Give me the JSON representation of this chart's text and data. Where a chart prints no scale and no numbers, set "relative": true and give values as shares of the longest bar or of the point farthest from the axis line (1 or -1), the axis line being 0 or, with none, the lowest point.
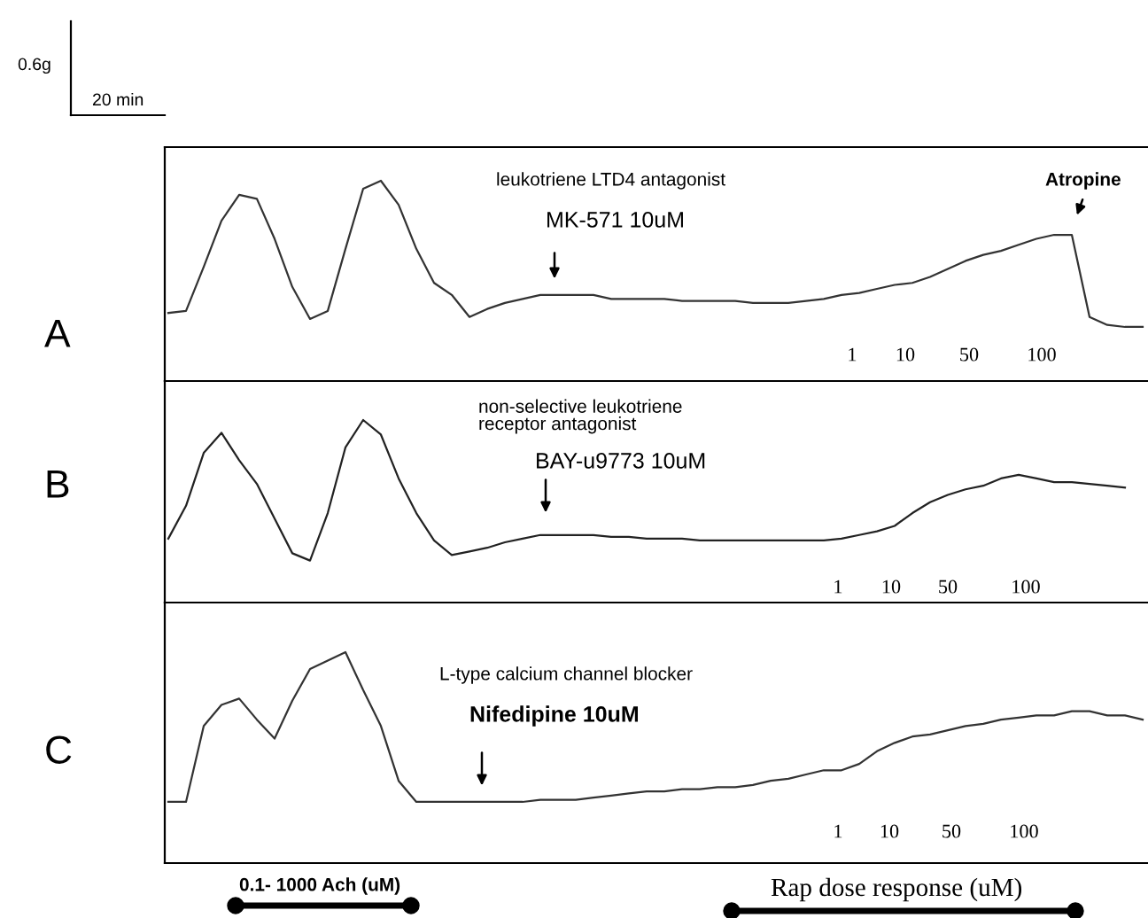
{
  "chart_data": [
    {
      "type": "line",
      "title": "A",
      "relative": true,
      "categories": [
        null,
        null,
        null,
        null,
        null,
        null,
        null,
        null,
        null,
        null,
        null,
        null,
        null,
        null,
        null,
        null,
        null,
        null,
        null,
        null,
        null,
        null,
        null,
        null,
        null,
        null,
        null,
        null,
        null,
        null,
        null,
        null,
        null,
        null,
        null,
        null,
        null,
        null,
        null,
        null,
        null,
        null,
        null,
        null,
        null,
        null,
        null,
        null,
        null,
        null,
        null,
        null,
        null,
        null,
        null,
        null
      ],
      "series": [
        {
          "color": "#333333",
          "values": [
            0.34,
            0.35,
            0.57,
            0.8,
            0.93,
            0.91,
            0.71,
            0.47,
            0.31,
            0.35,
            0.66,
            0.96,
            1.0,
            0.88,
            0.66,
            0.49,
            0.43,
            0.32,
            0.36,
            0.39,
            0.41,
            0.43,
            0.43,
            0.43,
            0.43,
            0.41,
            0.41,
            0.41,
            0.41,
            0.4,
            0.4,
            0.4,
            0.4,
            0.39,
            0.39,
            0.39,
            0.4,
            0.41,
            0.43,
            0.44,
            0.46,
            0.48,
            0.49,
            0.52,
            0.56,
            0.6,
            0.63,
            0.65,
            0.68,
            0.71,
            0.73,
            0.73,
            0.32,
            0.28,
            0.27,
            0.27
          ]
        }
      ],
      "annotations": [
        "0.6g",
        "20 min",
        "leukotriene LTD4 antagonist",
        "MK-571 10uM",
        "Atropine",
        "1",
        "10",
        "50",
        "100"
      ]
    },
    {
      "type": "line",
      "title": "B",
      "relative": true,
      "categories": [
        null,
        null,
        null,
        null,
        null,
        null,
        null,
        null,
        null,
        null,
        null,
        null,
        null,
        null,
        null,
        null,
        null,
        null,
        null,
        null,
        null,
        null,
        null,
        null,
        null,
        null,
        null,
        null,
        null,
        null,
        null,
        null,
        null,
        null,
        null,
        null,
        null,
        null,
        null,
        null,
        null,
        null,
        null,
        null,
        null,
        null,
        null,
        null,
        null,
        null,
        null,
        null,
        null,
        null,
        null,
        null
      ],
      "series": [
        {
          "color": "#222222",
          "values": [
            0.35,
            0.53,
            0.82,
            0.93,
            0.78,
            0.65,
            0.46,
            0.27,
            0.23,
            0.49,
            0.85,
            1.0,
            0.92,
            0.68,
            0.49,
            0.34,
            0.26,
            0.28,
            0.3,
            0.33,
            0.35,
            0.37,
            0.37,
            0.37,
            0.37,
            0.36,
            0.36,
            0.35,
            0.35,
            0.35,
            0.34,
            0.34,
            0.34,
            0.34,
            0.34,
            0.34,
            0.34,
            0.34,
            0.35,
            0.37,
            0.39,
            0.42,
            0.49,
            0.55,
            0.59,
            0.62,
            0.64,
            0.68,
            0.7,
            0.68,
            0.66,
            0.66,
            0.65,
            0.64,
            0.63,
            null
          ]
        }
      ],
      "annotations": [
        "non-selective leukotriene\nreceptor antagonist",
        "BAY-u9773 10uM",
        "1",
        "10",
        "50",
        "100"
      ]
    },
    {
      "type": "line",
      "title": "C",
      "relative": true,
      "categories": [
        null,
        null,
        null,
        null,
        null,
        null,
        null,
        null,
        null,
        null,
        null,
        null,
        null,
        null,
        null,
        null,
        null,
        null,
        null,
        null,
        null,
        null,
        null,
        null,
        null,
        null,
        null,
        null,
        null,
        null,
        null,
        null,
        null,
        null,
        null,
        null,
        null,
        null,
        null,
        null,
        null,
        null,
        null,
        null,
        null,
        null,
        null,
        null,
        null,
        null,
        null,
        null,
        null,
        null,
        null,
        null
      ],
      "series": [
        {
          "color": "#333333",
          "values": [
            0.29,
            0.29,
            0.65,
            0.75,
            0.78,
            0.68,
            0.59,
            0.77,
            0.92,
            0.96,
            1.0,
            0.82,
            0.65,
            0.39,
            0.29,
            0.29,
            0.29,
            0.29,
            0.29,
            0.29,
            0.29,
            0.3,
            0.3,
            0.3,
            0.31,
            0.32,
            0.33,
            0.34,
            0.34,
            0.35,
            0.35,
            0.36,
            0.36,
            0.37,
            0.39,
            0.4,
            0.42,
            0.44,
            0.44,
            0.47,
            0.53,
            0.57,
            0.6,
            0.61,
            0.63,
            0.65,
            0.66,
            0.68,
            0.69,
            0.7,
            0.7,
            0.72,
            0.72,
            0.7,
            0.7,
            0.68
          ]
        }
      ],
      "annotations": [
        "L-type calcium channel blocker",
        "Nifedipine 10uM",
        "1",
        "10",
        "50",
        "100",
        "0.1- 1000 Ach (uM)",
        "Rap dose response (uM)"
      ]
    }
  ]
}
